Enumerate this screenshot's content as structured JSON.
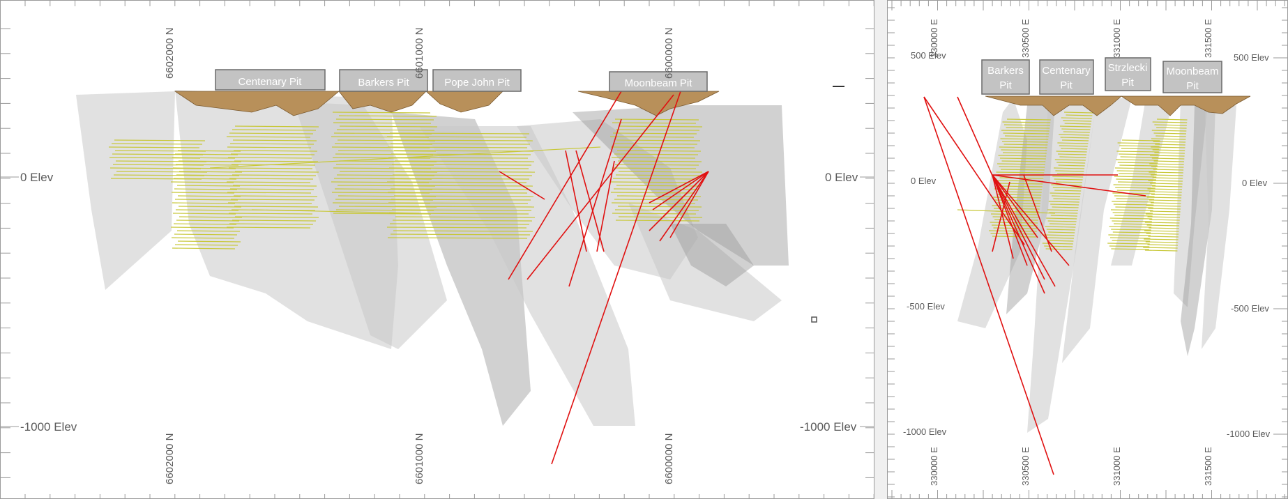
{
  "left_view": {
    "north_top_labels": [
      "6602000 N",
      "6601000 N",
      "6600000 N"
    ],
    "north_bottom_labels": [
      "6602000 N",
      "6601000 N",
      "6600000 N"
    ],
    "elev_left_labels": [
      "0 Elev",
      "-1000 Elev"
    ],
    "elev_right_labels": [
      "0 Elev",
      "-1000 Elev"
    ],
    "pits": [
      "Centenary Pit",
      "Barkers Pit",
      "Pope John Pit",
      "Moonbeam Pit"
    ]
  },
  "right_view": {
    "east_top_labels": [
      "330000 E",
      "330500 E",
      "331000 E",
      "331500 E"
    ],
    "east_bottom_labels": [
      "330000 E",
      "330500 E",
      "331000 E",
      "331500 E"
    ],
    "elev_left_labels": [
      "500 Elev",
      "0 Elev",
      "-500 Elev",
      "-1000 Elev"
    ],
    "elev_right_labels": [
      "500 Elev",
      "0 Elev",
      "-500 Elev",
      "-1000 Elev"
    ],
    "pits": [
      [
        "Barkers",
        "Pit"
      ],
      [
        "Centenary",
        "Pit"
      ],
      [
        "Strzlecki",
        "Pit"
      ],
      [
        "Moonbeam",
        "Pit"
      ]
    ]
  },
  "colors": {
    "drillhole": "#e01010",
    "mineralization": "#c8c83a",
    "pit_surface": "#b8905a",
    "fault_surface": "#c9c9c9"
  }
}
